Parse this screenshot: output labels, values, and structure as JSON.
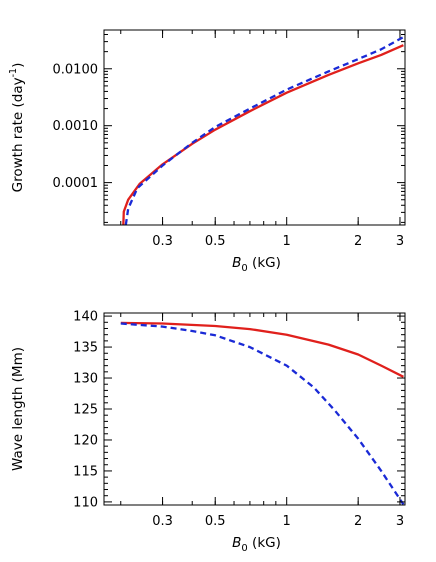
{
  "colors": {
    "solid": "#e0201c",
    "dashed": "#1a2ad6",
    "axis": "#000000"
  },
  "chart_data": [
    {
      "type": "line",
      "ylabel": "Growth rate (day",
      "ylabel_sup": "-1",
      "ylabel_close": ")",
      "xlabel_main": "B",
      "xlabel_sub": "0",
      "xlabel_unit": " (kG)",
      "xscale": "log",
      "yscale": "log",
      "xlim": [
        0.17,
        3.15
      ],
      "ylim": [
        1.8e-05,
        0.048
      ],
      "x_ticks": [
        {
          "value": 0.3,
          "label": "0.3"
        },
        {
          "value": 0.5,
          "label": "0.5"
        },
        {
          "value": 1,
          "label": "1"
        },
        {
          "value": 2,
          "label": "2"
        },
        {
          "value": 3,
          "label": "3"
        }
      ],
      "y_ticks": [
        {
          "value": 0.0001,
          "label": "0.0001"
        },
        {
          "value": 0.001,
          "label": "0.0010"
        },
        {
          "value": 0.01,
          "label": "0.0100"
        }
      ],
      "grid": false,
      "series": [
        {
          "style": "solid",
          "color": "#e0201c",
          "points": [
            [
              0.205,
              1.8e-05
            ],
            [
              0.206,
              3.1e-05
            ],
            [
              0.215,
              5e-05
            ],
            [
              0.24,
              9.5e-05
            ],
            [
              0.3,
              0.00021
            ],
            [
              0.4,
              0.00048
            ],
            [
              0.5,
              0.00085
            ],
            [
              0.7,
              0.0018
            ],
            [
              1.0,
              0.0038
            ],
            [
              1.5,
              0.0078
            ],
            [
              2.0,
              0.0125
            ],
            [
              2.5,
              0.0175
            ],
            [
              3.1,
              0.026
            ]
          ]
        },
        {
          "style": "dashed",
          "color": "#1a2ad6",
          "points": [
            [
              0.21,
              1.8e-05
            ],
            [
              0.215,
              3.5e-05
            ],
            [
              0.235,
              8e-05
            ],
            [
              0.3,
              0.0002
            ],
            [
              0.4,
              0.0005
            ],
            [
              0.5,
              0.00095
            ],
            [
              0.7,
              0.002
            ],
            [
              1.0,
              0.0043
            ],
            [
              1.5,
              0.009
            ],
            [
              2.0,
              0.0148
            ],
            [
              2.5,
              0.022
            ],
            [
              3.1,
              0.036
            ]
          ]
        }
      ]
    },
    {
      "type": "line",
      "ylabel": "Wave length (Mm)",
      "xlabel_main": "B",
      "xlabel_sub": "0",
      "xlabel_unit": " (kG)",
      "xscale": "log",
      "yscale": "linear",
      "xlim": [
        0.17,
        3.15
      ],
      "ylim": [
        109.5,
        140.5
      ],
      "x_ticks": [
        {
          "value": 0.3,
          "label": "0.3"
        },
        {
          "value": 0.5,
          "label": "0.5"
        },
        {
          "value": 1,
          "label": "1"
        },
        {
          "value": 2,
          "label": "2"
        },
        {
          "value": 3,
          "label": "3"
        }
      ],
      "y_ticks": [
        {
          "value": 110,
          "label": "110"
        },
        {
          "value": 115,
          "label": "115"
        },
        {
          "value": 120,
          "label": "120"
        },
        {
          "value": 125,
          "label": "125"
        },
        {
          "value": 130,
          "label": "130"
        },
        {
          "value": 135,
          "label": "135"
        },
        {
          "value": 140,
          "label": "140"
        }
      ],
      "grid": false,
      "series": [
        {
          "style": "solid",
          "color": "#e0201c",
          "points": [
            [
              0.2,
              138.9
            ],
            [
              0.3,
              138.8
            ],
            [
              0.5,
              138.4
            ],
            [
              0.7,
              137.9
            ],
            [
              1.0,
              137.0
            ],
            [
              1.5,
              135.4
            ],
            [
              2.0,
              133.8
            ],
            [
              2.5,
              132.0
            ],
            [
              3.1,
              130.2
            ]
          ]
        },
        {
          "style": "dashed",
          "color": "#1a2ad6",
          "points": [
            [
              0.2,
              138.8
            ],
            [
              0.3,
              138.3
            ],
            [
              0.4,
              137.6
            ],
            [
              0.5,
              136.9
            ],
            [
              0.7,
              135.0
            ],
            [
              1.0,
              132.0
            ],
            [
              1.3,
              128.5
            ],
            [
              1.6,
              124.7
            ],
            [
              2.0,
              120.2
            ],
            [
              2.5,
              115.0
            ],
            [
              3.1,
              109.6
            ]
          ]
        }
      ]
    }
  ]
}
